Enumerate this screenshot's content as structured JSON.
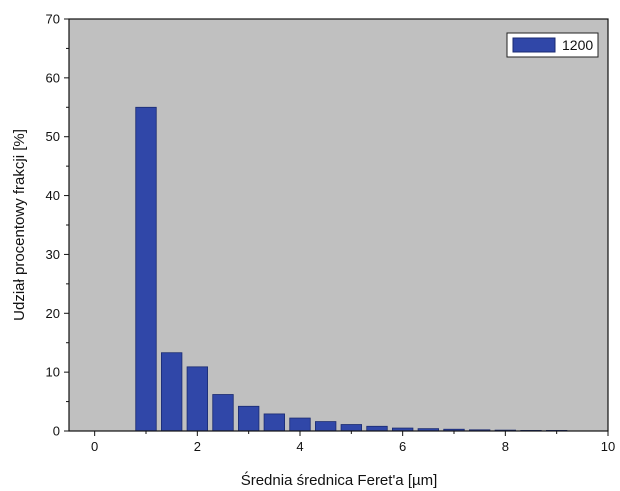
{
  "chart_data": {
    "type": "bar",
    "xlabel": "Średnia średnica Feret'a [µm]",
    "ylabel": "Udział procentowy frakcji [%]",
    "xlim": [
      -0.5,
      10
    ],
    "ylim": [
      0,
      70
    ],
    "x_ticks": [
      0,
      2,
      4,
      6,
      8,
      10
    ],
    "y_ticks": [
      0,
      10,
      20,
      30,
      40,
      50,
      60,
      70
    ],
    "x_tick_labels": [
      "0",
      "2",
      "4",
      "6",
      "8",
      "10"
    ],
    "y_tick_labels": [
      "0",
      "10",
      "20",
      "30",
      "40",
      "50",
      "60",
      "70"
    ],
    "bar_width": 0.4,
    "grid": false,
    "legend_position": "top-right",
    "background_color": "#c0c0c0",
    "bar_color": "#3047a8",
    "series": [
      {
        "name": "1200",
        "x": [
          1.0,
          1.5,
          2.0,
          2.5,
          3.0,
          3.5,
          4.0,
          4.5,
          5.0,
          5.5,
          6.0,
          6.5,
          7.0,
          7.5,
          8.0,
          8.5,
          9.0
        ],
        "values": [
          55.0,
          13.3,
          10.9,
          6.2,
          4.2,
          2.9,
          2.2,
          1.6,
          1.1,
          0.8,
          0.5,
          0.4,
          0.3,
          0.2,
          0.15,
          0.1,
          0.1
        ]
      }
    ]
  }
}
